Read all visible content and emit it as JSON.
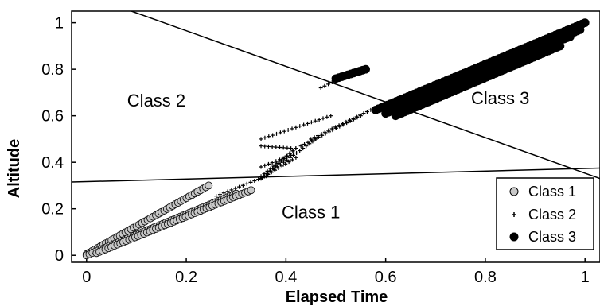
{
  "chart_data": {
    "type": "scatter",
    "xlabel": "Elapsed Time",
    "ylabel": "Altitude",
    "xlim": [
      -0.03,
      1.03
    ],
    "ylim": [
      -0.03,
      1.05
    ],
    "x_ticks": [
      "0",
      "0.2",
      "0.4",
      "0.6",
      "0.8",
      "1"
    ],
    "y_ticks": [
      "0",
      "0.2",
      "0.4",
      "0.6",
      "0.8",
      "1"
    ],
    "grid": false,
    "legend_position": "bottom-right",
    "region_labels": [
      {
        "text": "Class 2",
        "x": 0.14,
        "y": 0.64
      },
      {
        "text": "Class 3",
        "x": 0.83,
        "y": 0.65
      },
      {
        "text": "Class 1",
        "x": 0.45,
        "y": 0.16
      }
    ],
    "boundary_lines": [
      {
        "x": [
          -0.03,
          1.03
        ],
        "y": [
          0.315,
          0.375
        ]
      },
      {
        "x": [
          0.09,
          1.03
        ],
        "y": [
          1.05,
          0.33
        ]
      }
    ],
    "series": [
      {
        "name": "Class 1",
        "marker": "circle-open",
        "color": "#bdbdbd",
        "bands": [
          {
            "x0": 0.0,
            "x1": 0.245,
            "y0": 0.005,
            "y1": 0.3
          },
          {
            "x0": 0.0,
            "x1": 0.3,
            "y0": 0.0,
            "y1": 0.265
          },
          {
            "x0": 0.02,
            "x1": 0.33,
            "y0": 0.01,
            "y1": 0.28
          }
        ]
      },
      {
        "name": "Class 2",
        "marker": "plus",
        "color": "#000000",
        "bands": [
          {
            "x0": 0.26,
            "x1": 0.36,
            "y0": 0.255,
            "y1": 0.34
          },
          {
            "x0": 0.35,
            "x1": 0.46,
            "y0": 0.33,
            "y1": 0.5
          },
          {
            "x0": 0.45,
            "x1": 0.57,
            "y0": 0.5,
            "y1": 0.625
          },
          {
            "x0": 0.43,
            "x1": 0.55,
            "y0": 0.47,
            "y1": 0.6
          },
          {
            "x0": 0.35,
            "x1": 0.42,
            "y0": 0.33,
            "y1": 0.42
          },
          {
            "x0": 0.35,
            "x1": 0.42,
            "y0": 0.33,
            "y1": 0.46
          },
          {
            "x0": 0.35,
            "x1": 0.41,
            "y0": 0.38,
            "y1": 0.43
          },
          {
            "x0": 0.35,
            "x1": 0.41,
            "y0": 0.47,
            "y1": 0.46
          },
          {
            "x0": 0.35,
            "x1": 0.49,
            "y0": 0.5,
            "y1": 0.6
          },
          {
            "x0": 0.35,
            "x1": 0.42,
            "y0": 0.34,
            "y1": 0.46
          },
          {
            "x0": 0.47,
            "x1": 0.545,
            "y0": 0.72,
            "y1": 0.8
          }
        ]
      },
      {
        "name": "Class 3",
        "marker": "circle-filled",
        "color": "#000000",
        "bands": [
          {
            "x0": 0.58,
            "x1": 1.0,
            "y0": 0.625,
            "y1": 1.0
          },
          {
            "x0": 0.6,
            "x1": 0.99,
            "y0": 0.61,
            "y1": 0.97
          },
          {
            "x0": 0.6,
            "x1": 0.97,
            "y0": 0.64,
            "y1": 0.94
          },
          {
            "x0": 0.62,
            "x1": 0.95,
            "y0": 0.6,
            "y1": 0.9
          },
          {
            "x0": 0.5,
            "x1": 0.56,
            "y0": 0.76,
            "y1": 0.8
          }
        ]
      }
    ]
  }
}
